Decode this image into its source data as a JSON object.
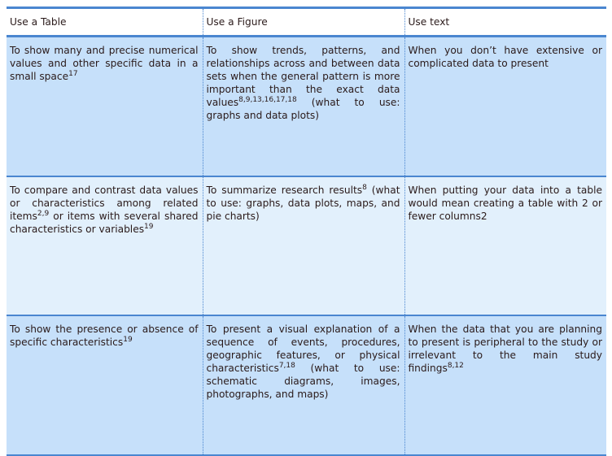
{
  "headers": [
    "Use a Table",
    "Use a Figure",
    "Use text"
  ],
  "rows": [
    [
      {
        "text": "To show many and precise numerical values and other specific data in a small space",
        "sup": "17",
        "after": ""
      },
      {
        "text": "To show trends, patterns, and relationships across and between data sets when the general pattern is more important than the exact data values",
        "sup": "8,9,13,16,17,18",
        "after": " (what to use: graphs and data plots)"
      },
      {
        "text": "When you don’t have extensive or complicated data to present",
        "sup": "",
        "after": ""
      }
    ],
    [
      {
        "text": "To compare and contrast data values or characteristics among related items",
        "sup": "2,9",
        "after": " or items with several shared characteristics or variables",
        "sup2": "19"
      },
      {
        "text": "To summarize research results",
        "sup": "8",
        "after": " (what to use: graphs, data plots, maps, and pie charts)"
      },
      {
        "text": "When putting your data into a table would mean creating a table with 2 or fewer columns2",
        "sup": "",
        "after": ""
      }
    ],
    [
      {
        "text": "To show the presence or absence of specific characteristics",
        "sup": "19",
        "after": ""
      },
      {
        "text": "To present a visual explanation of a sequence of events, procedures, geographic features, or physical characteristics",
        "sup": "7,18",
        "after": " (what to use: schematic diagrams, images, photographs, and maps)"
      },
      {
        "text": "When the data that you are planning to present is peripheral to the study or irrelevant to the main study findings",
        "sup": "8,12",
        "after": ""
      }
    ]
  ],
  "colors": {
    "border": "#4a86d0",
    "row_dark": "#c6e0fa",
    "row_light": "#e2f0fc"
  }
}
